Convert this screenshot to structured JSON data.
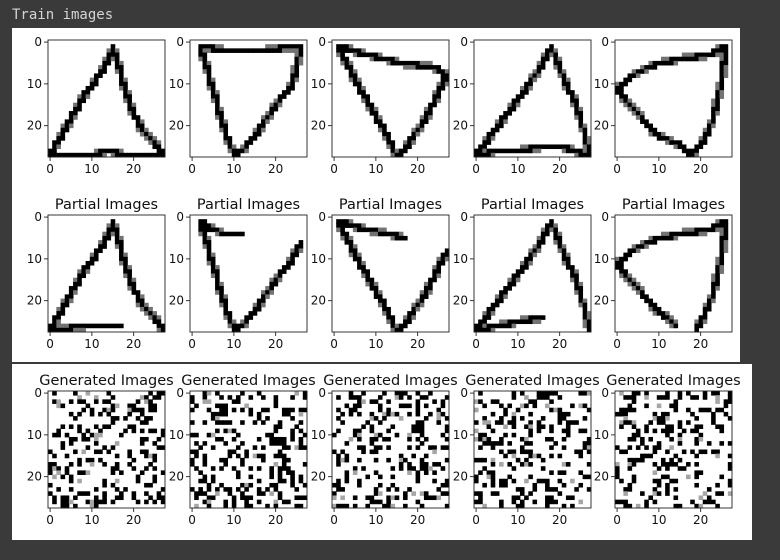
{
  "cell": {
    "label": "Train images"
  },
  "figure1": {
    "rows": [
      {
        "title": ""
      },
      {
        "title": "Partial Images"
      }
    ]
  },
  "figure2": {
    "rows": [
      {
        "title": "Generated Images"
      }
    ]
  },
  "axes": {
    "x_ticks": [
      "0",
      "10",
      "20"
    ],
    "y_ticks": [
      "0",
      "10",
      "20"
    ]
  },
  "chart_data": [
    {
      "type": "heatmap",
      "description_key": "train-images",
      "grid": [
        28,
        28
      ],
      "xlim": [
        0,
        27
      ],
      "ylim": [
        27,
        0
      ],
      "xticks": [
        0,
        10,
        20
      ],
      "yticks": [
        0,
        10,
        20
      ],
      "panels": 5
    },
    {
      "type": "heatmap",
      "title": "Partial Images",
      "grid": [
        28,
        28
      ],
      "xlim": [
        0,
        27
      ],
      "ylim": [
        27,
        0
      ],
      "xticks": [
        0,
        10,
        20
      ],
      "yticks": [
        0,
        10,
        20
      ],
      "panels": 5
    },
    {
      "type": "heatmap",
      "title": "Generated Images",
      "grid": [
        28,
        28
      ],
      "xlim": [
        0,
        27
      ],
      "ylim": [
        27,
        0
      ],
      "xticks": [
        0,
        10,
        20
      ],
      "yticks": [
        0,
        10,
        20
      ],
      "panels": 5
    }
  ]
}
